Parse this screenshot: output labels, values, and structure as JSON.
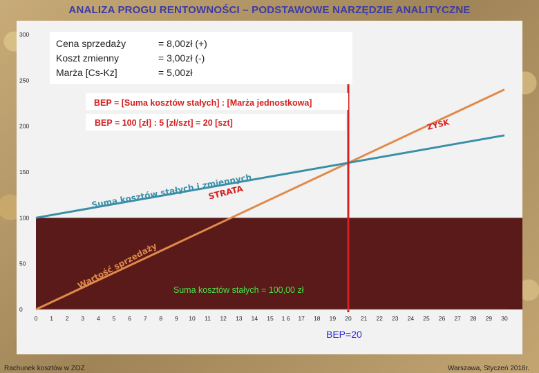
{
  "title": "ANALIZA PROGU RENTOWNOŚCI – PODSTAWOWE NARZĘDZIE ANALITYCZNE",
  "footer": {
    "left": "Rachunek kosztów w ZOZ",
    "right": "Warszawa, Styczeń 2018r."
  },
  "legend": {
    "rows": [
      {
        "label": "Cena sprzedaży",
        "value": "= 8,00zł (+)"
      },
      {
        "label": "Koszt zmienny",
        "value": "= 3,00zł (-)"
      },
      {
        "label": "Marża [Cs-Kz]",
        "value": "= 5,00zł"
      }
    ]
  },
  "formula": {
    "line1": "BEP = [Suma kosztów stałych] : [Marża jednostkowa]",
    "line2": "BEP = 100 [zł] : 5 [zł/szt] = 20 [szt]"
  },
  "chart_data": {
    "type": "line",
    "x": [
      0,
      1,
      2,
      3,
      4,
      5,
      6,
      7,
      8,
      9,
      10,
      11,
      12,
      13,
      14,
      15,
      16,
      17,
      18,
      19,
      20,
      21,
      22,
      23,
      24,
      25,
      26,
      27,
      28,
      29,
      30
    ],
    "xtick_labels": [
      "0",
      "1",
      "2",
      "3",
      "4",
      "5",
      "6",
      "7",
      "8",
      "9",
      "10",
      "11",
      "12",
      "13",
      "14",
      "15",
      "1 6",
      "17",
      "18",
      "19",
      "20",
      "21",
      "22",
      "23",
      "24",
      "25",
      "26",
      "27",
      "28",
      "29",
      "30"
    ],
    "yticks": [
      0,
      50,
      100,
      150,
      200,
      250,
      300
    ],
    "xlim": [
      0,
      30
    ],
    "ylim": [
      0,
      300
    ],
    "fixed_costs": 100,
    "unit_price": 8,
    "unit_variable_cost": 3,
    "bep_x": 20,
    "bep_label": "BEP=20",
    "labels": {
      "fixed_costs": "Suma kosztów stałych = 100,00 zł",
      "total_costs": "Suma kosztów stałych i zmiennych",
      "revenue": "Wartość sprzedaży",
      "loss": "STRATA",
      "profit": "ZYSK"
    },
    "colors": {
      "revenue": "#e08a4a",
      "total_costs": "#3a8fa8",
      "fixed_costs": "#5a1a1a",
      "bep_line": "#d42020",
      "loss": "#d42020",
      "profit": "#d42020",
      "formula": "#d42020",
      "fixed_label": "#4ae04a",
      "bep_label": "#2a2ad8"
    },
    "grid": false
  }
}
